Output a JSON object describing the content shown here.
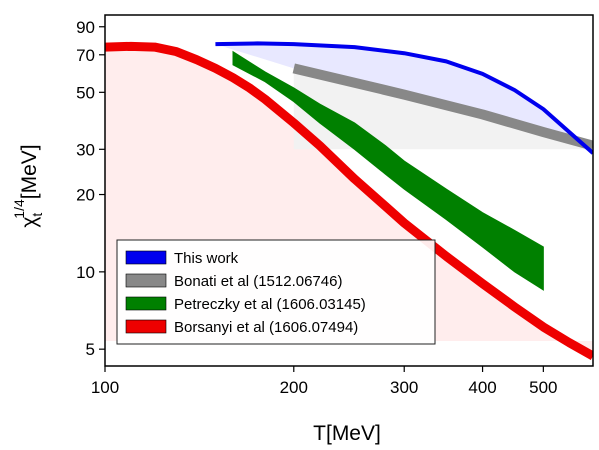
{
  "chart_data": {
    "type": "line",
    "title": "",
    "xlabel": "T[MeV]",
    "ylabel": {
      "base": "χ",
      "sub": "t",
      "sup": "1/4",
      "unit": "[MeV]"
    },
    "x_scale": "log",
    "y_scale": "log",
    "xlim": [
      100,
      600
    ],
    "ylim": [
      4.3,
      100
    ],
    "x_ticks": [
      {
        "value": 100,
        "label": "100"
      },
      {
        "value": 200,
        "label": "200"
      },
      {
        "value": 300,
        "label": "300"
      },
      {
        "value": 400,
        "label": "400"
      },
      {
        "value": 500,
        "label": "500"
      }
    ],
    "y_ticks": [
      {
        "value": 5,
        "label": "5"
      },
      {
        "value": 10,
        "label": "10"
      },
      {
        "value": 20,
        "label": "20"
      },
      {
        "value": 30,
        "label": "30"
      },
      {
        "value": 50,
        "label": "50"
      },
      {
        "value": 70,
        "label": "70"
      },
      {
        "value": 90,
        "label": "90"
      }
    ],
    "legend_position": "bottom-left",
    "series": [
      {
        "name": "This work",
        "color": "#0000ee",
        "x": [
          150,
          175,
          200,
          250,
          300,
          350,
          400,
          450,
          500,
          550,
          600
        ],
        "y": [
          77,
          77.5,
          77,
          75,
          71,
          66,
          59,
          51,
          43,
          35,
          29
        ]
      },
      {
        "name": "Bonati et al (1512.06746)",
        "color": "#888888",
        "x": [
          200,
          300,
          400,
          500,
          600
        ],
        "y": [
          62,
          49,
          41,
          35,
          31
        ]
      },
      {
        "name": "Petreczky et al (1606.03145)",
        "color": "#008000",
        "x": [
          160,
          180,
          200,
          220,
          250,
          280,
          300,
          350,
          400,
          450,
          500
        ],
        "y_upper": [
          72,
          60,
          52,
          45,
          38,
          31,
          27,
          21,
          17,
          14.5,
          12.5
        ],
        "y_lower": [
          64,
          55,
          46,
          38,
          30,
          24,
          21,
          16,
          12.5,
          10,
          8.5
        ]
      },
      {
        "name": "Borsanyi et al (1606.07494)",
        "color": "#ee0000",
        "x": [
          100,
          110,
          120,
          130,
          140,
          150,
          160,
          170,
          180,
          200,
          220,
          250,
          280,
          300,
          350,
          400,
          450,
          500,
          550,
          600
        ],
        "y": [
          75,
          75.5,
          75,
          72,
          67,
          62,
          57,
          52,
          47,
          38,
          31,
          23,
          18,
          15.5,
          11.5,
          9,
          7.3,
          6.1,
          5.3,
          4.7
        ]
      }
    ]
  }
}
